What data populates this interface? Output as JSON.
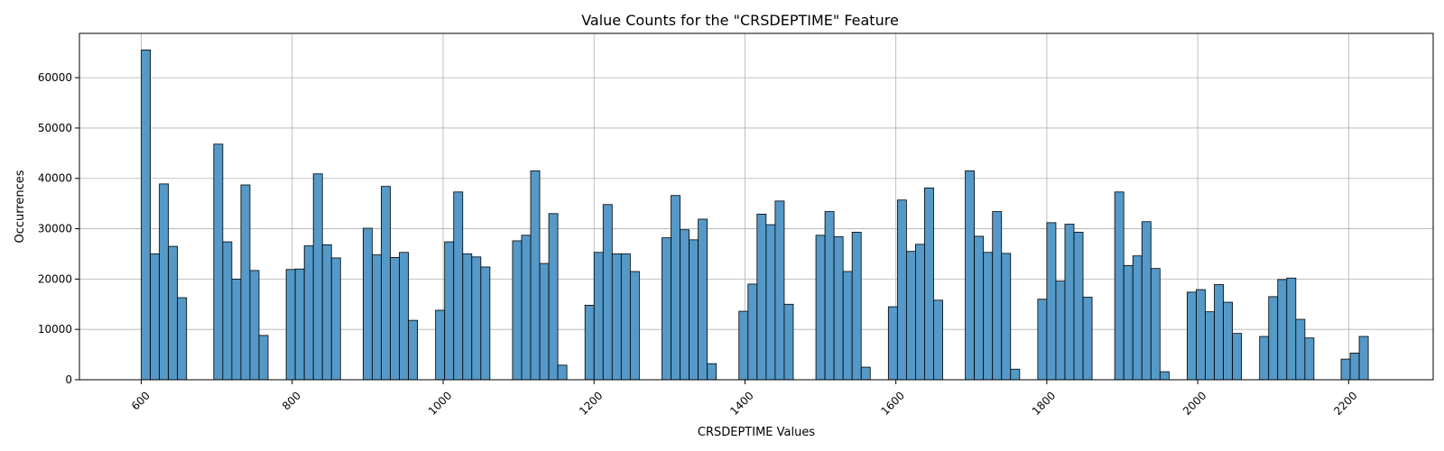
{
  "chart_data": {
    "type": "bar",
    "title": "Value Counts for the \"CRSDEPTIME\" Feature",
    "xlabel": "CRSDEPTIME Values",
    "ylabel": "Occurrences",
    "xlim": [
      518,
      2312
    ],
    "ylim": [
      0,
      68800
    ],
    "xticks": [
      600,
      800,
      1000,
      1200,
      1400,
      1600,
      1800,
      2000,
      2200
    ],
    "yticks": [
      0,
      10000,
      20000,
      30000,
      40000,
      50000,
      60000
    ],
    "grid": true,
    "bin_width": 12,
    "bins": [
      {
        "x": 600,
        "y": 65500
      },
      {
        "x": 612,
        "y": 25000
      },
      {
        "x": 624,
        "y": 38900
      },
      {
        "x": 636,
        "y": 26500
      },
      {
        "x": 648,
        "y": 16300
      },
      {
        "x": 696,
        "y": 46800
      },
      {
        "x": 708,
        "y": 27400
      },
      {
        "x": 720,
        "y": 20000
      },
      {
        "x": 732,
        "y": 38700
      },
      {
        "x": 744,
        "y": 21700
      },
      {
        "x": 756,
        "y": 8800
      },
      {
        "x": 792,
        "y": 21900
      },
      {
        "x": 804,
        "y": 22000
      },
      {
        "x": 816,
        "y": 26600
      },
      {
        "x": 828,
        "y": 40900
      },
      {
        "x": 840,
        "y": 26800
      },
      {
        "x": 852,
        "y": 24200
      },
      {
        "x": 894,
        "y": 30100
      },
      {
        "x": 906,
        "y": 24800
      },
      {
        "x": 918,
        "y": 38400
      },
      {
        "x": 930,
        "y": 24300
      },
      {
        "x": 942,
        "y": 25300
      },
      {
        "x": 954,
        "y": 11800
      },
      {
        "x": 990,
        "y": 13800
      },
      {
        "x": 1002,
        "y": 27400
      },
      {
        "x": 1014,
        "y": 37300
      },
      {
        "x": 1026,
        "y": 25000
      },
      {
        "x": 1038,
        "y": 24400
      },
      {
        "x": 1050,
        "y": 22400
      },
      {
        "x": 1092,
        "y": 27600
      },
      {
        "x": 1104,
        "y": 28700
      },
      {
        "x": 1116,
        "y": 41500
      },
      {
        "x": 1128,
        "y": 23100
      },
      {
        "x": 1140,
        "y": 33000
      },
      {
        "x": 1152,
        "y": 2900
      },
      {
        "x": 1188,
        "y": 14800
      },
      {
        "x": 1200,
        "y": 25300
      },
      {
        "x": 1212,
        "y": 34800
      },
      {
        "x": 1224,
        "y": 25000
      },
      {
        "x": 1236,
        "y": 25000
      },
      {
        "x": 1248,
        "y": 21500
      },
      {
        "x": 1290,
        "y": 28200
      },
      {
        "x": 1302,
        "y": 36600
      },
      {
        "x": 1314,
        "y": 29800
      },
      {
        "x": 1326,
        "y": 27800
      },
      {
        "x": 1338,
        "y": 31900
      },
      {
        "x": 1350,
        "y": 3200
      },
      {
        "x": 1392,
        "y": 13600
      },
      {
        "x": 1404,
        "y": 19000
      },
      {
        "x": 1416,
        "y": 32900
      },
      {
        "x": 1428,
        "y": 30800
      },
      {
        "x": 1440,
        "y": 35500
      },
      {
        "x": 1452,
        "y": 15000
      },
      {
        "x": 1494,
        "y": 28700
      },
      {
        "x": 1506,
        "y": 33400
      },
      {
        "x": 1518,
        "y": 28400
      },
      {
        "x": 1530,
        "y": 21500
      },
      {
        "x": 1542,
        "y": 29300
      },
      {
        "x": 1554,
        "y": 2500
      },
      {
        "x": 1590,
        "y": 14500
      },
      {
        "x": 1602,
        "y": 35700
      },
      {
        "x": 1614,
        "y": 25500
      },
      {
        "x": 1626,
        "y": 26900
      },
      {
        "x": 1638,
        "y": 38100
      },
      {
        "x": 1650,
        "y": 15800
      },
      {
        "x": 1692,
        "y": 41500
      },
      {
        "x": 1704,
        "y": 28500
      },
      {
        "x": 1716,
        "y": 25300
      },
      {
        "x": 1728,
        "y": 33400
      },
      {
        "x": 1740,
        "y": 25100
      },
      {
        "x": 1752,
        "y": 2100
      },
      {
        "x": 1788,
        "y": 16000
      },
      {
        "x": 1800,
        "y": 31200
      },
      {
        "x": 1812,
        "y": 19600
      },
      {
        "x": 1824,
        "y": 30900
      },
      {
        "x": 1836,
        "y": 29300
      },
      {
        "x": 1848,
        "y": 16400
      },
      {
        "x": 1890,
        "y": 37300
      },
      {
        "x": 1902,
        "y": 22700
      },
      {
        "x": 1914,
        "y": 24600
      },
      {
        "x": 1926,
        "y": 31400
      },
      {
        "x": 1938,
        "y": 22100
      },
      {
        "x": 1950,
        "y": 1600
      },
      {
        "x": 1986,
        "y": 17400
      },
      {
        "x": 1998,
        "y": 17900
      },
      {
        "x": 2010,
        "y": 13500
      },
      {
        "x": 2022,
        "y": 18900
      },
      {
        "x": 2034,
        "y": 15400
      },
      {
        "x": 2046,
        "y": 9200
      },
      {
        "x": 2082,
        "y": 8600
      },
      {
        "x": 2094,
        "y": 16500
      },
      {
        "x": 2106,
        "y": 19900
      },
      {
        "x": 2118,
        "y": 20200
      },
      {
        "x": 2130,
        "y": 12000
      },
      {
        "x": 2142,
        "y": 8300
      },
      {
        "x": 2190,
        "y": 4100
      },
      {
        "x": 2202,
        "y": 5300
      },
      {
        "x": 2214,
        "y": 8600
      }
    ]
  }
}
